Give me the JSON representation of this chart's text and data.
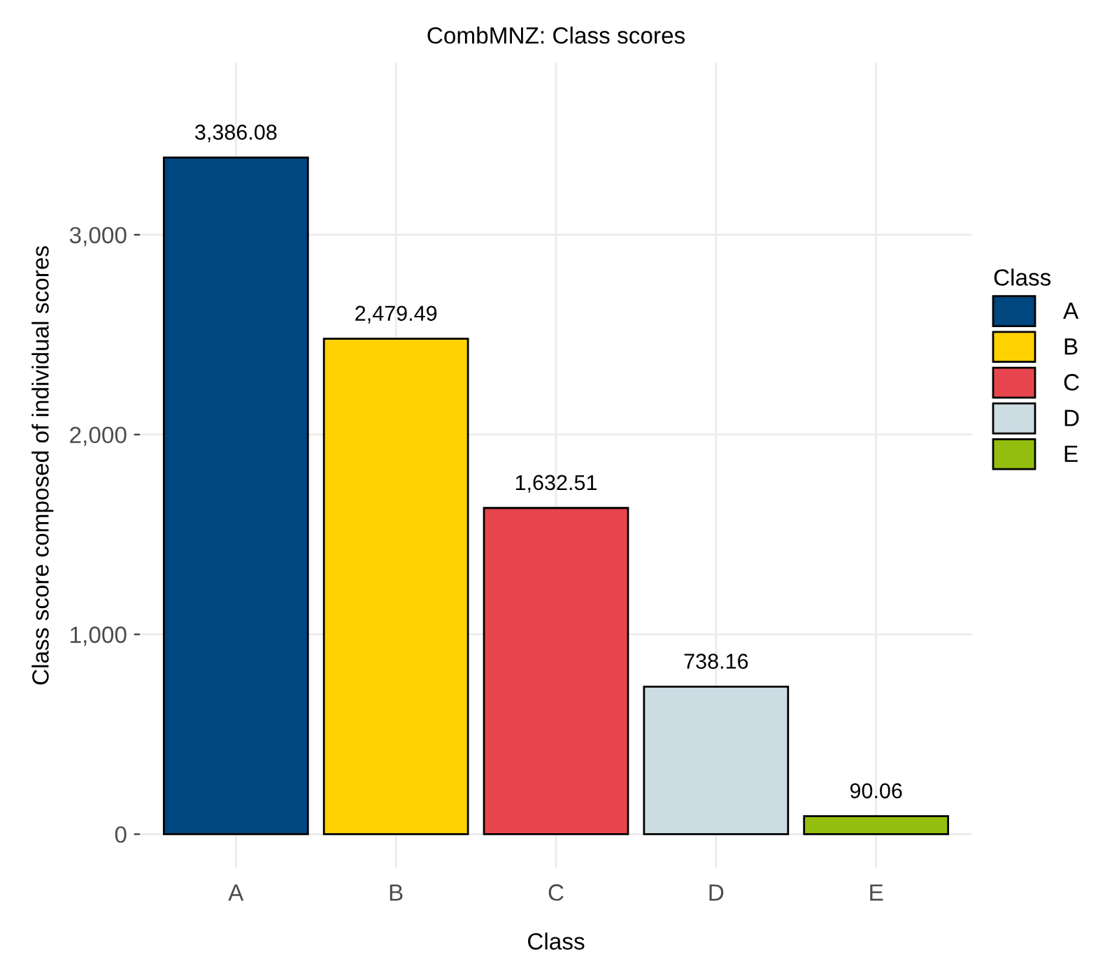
{
  "chart_data": {
    "type": "bar",
    "title": "CombMNZ: Class scores",
    "xlabel": "Class",
    "ylabel": "Class score composed of individual scores",
    "legend_title": "Class",
    "categories": [
      "A",
      "B",
      "C",
      "D",
      "E"
    ],
    "series": [
      {
        "name": "A",
        "color": "#00467f",
        "values": [
          3386.08,
          null,
          null,
          null,
          null
        ],
        "value_labels": [
          "3,386.08",
          null,
          null,
          null,
          null
        ]
      },
      {
        "name": "B",
        "color": "#ffd100",
        "values": [
          null,
          2479.49,
          null,
          null,
          null
        ],
        "value_labels": [
          null,
          "2,479.49",
          null,
          null,
          null
        ]
      },
      {
        "name": "C",
        "color": "#e8464f",
        "values": [
          null,
          null,
          1632.51,
          null,
          null
        ],
        "value_labels": [
          null,
          null,
          "1,632.51",
          null,
          null
        ]
      },
      {
        "name": "D",
        "color": "#cddbe3",
        "values": [
          null,
          null,
          null,
          738.16,
          null
        ],
        "value_labels": [
          null,
          null,
          null,
          "738.16",
          null
        ]
      },
      {
        "name": "E",
        "color": "#94be0d",
        "values": [
          null,
          null,
          null,
          null,
          90.06
        ],
        "value_labels": [
          null,
          null,
          null,
          null,
          "90.06"
        ]
      }
    ],
    "ylim": [
      -170,
      3860
    ],
    "yticks": [
      {
        "value": 0,
        "label": "0"
      },
      {
        "value": 1000,
        "label": "1,000"
      },
      {
        "value": 2000,
        "label": "2,000"
      },
      {
        "value": 3000,
        "label": "3,000"
      }
    ],
    "grid": true,
    "legend": "right"
  }
}
